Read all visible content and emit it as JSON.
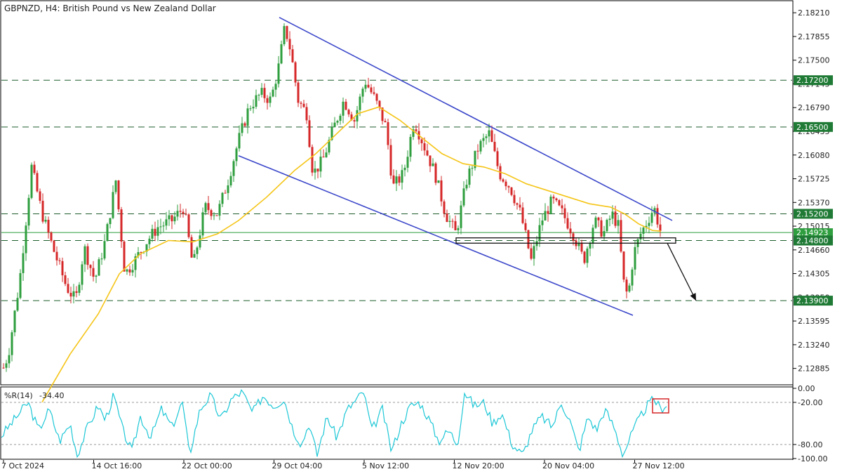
{
  "header": {
    "title": "GBPNZD, H4:  British Pound vs New Zealand Dollar"
  },
  "colors": {
    "bull": "#2e9e3e",
    "bear": "#d62728",
    "ma": "#f5c518",
    "channel": "#3b47c9",
    "indicator": "#1cc7d6",
    "hline_fill": "#1e7a34",
    "grid": "#9a9a9a",
    "arrow": "#111111",
    "box": "#d62728"
  },
  "chart_data": {
    "type": "candlestick",
    "symbol": "GBPNZD",
    "timeframe": "H4",
    "ylim": [
      2.1265,
      2.1838
    ],
    "y_ticks": [
      "2.18210",
      "2.17855",
      "2.17500",
      "2.17145",
      "2.16790",
      "2.16435",
      "2.16080",
      "2.15725",
      "2.15370",
      "2.15015",
      "2.14660",
      "2.14305",
      "2.13950",
      "2.13595",
      "2.13240",
      "2.12885"
    ],
    "x_ticks": [
      "7 Oct 2024",
      "14 Oct 16:00",
      "22 Oct 00:00",
      "29 Oct 04:00",
      "5 Nov 12:00",
      "12 Nov 20:00",
      "20 Nov 04:00",
      "27 Nov 12:00"
    ],
    "horizontal_levels": [
      {
        "value": 2.172,
        "label": "2.17200"
      },
      {
        "value": 2.165,
        "label": "2.16500"
      },
      {
        "value": 2.152,
        "label": "2.15200"
      },
      {
        "value": 2.148,
        "label": "2.14800"
      },
      {
        "value": 2.139,
        "label": "2.13900"
      }
    ],
    "current_price": {
      "value": 2.1492,
      "label": "2.14923"
    },
    "price_path": [
      [
        0,
        2.1275
      ],
      [
        12,
        2.131
      ],
      [
        28,
        2.142
      ],
      [
        45,
        2.159
      ],
      [
        60,
        2.152
      ],
      [
        75,
        2.147
      ],
      [
        95,
        2.141
      ],
      [
        108,
        2.139
      ],
      [
        120,
        2.147
      ],
      [
        135,
        2.142
      ],
      [
        150,
        2.148
      ],
      [
        165,
        2.157
      ],
      [
        178,
        2.143
      ],
      [
        192,
        2.145
      ],
      [
        210,
        2.148
      ],
      [
        225,
        2.15
      ],
      [
        245,
        2.151
      ],
      [
        262,
        2.153
      ],
      [
        275,
        2.144
      ],
      [
        292,
        2.153
      ],
      [
        310,
        2.152
      ],
      [
        325,
        2.157
      ],
      [
        340,
        2.163
      ],
      [
        355,
        2.168
      ],
      [
        372,
        2.17
      ],
      [
        386,
        2.169
      ],
      [
        397,
        2.174
      ],
      [
        406,
        2.18
      ],
      [
        414,
        2.1765
      ],
      [
        425,
        2.169
      ],
      [
        437,
        2.167
      ],
      [
        446,
        2.158
      ],
      [
        460,
        2.16
      ],
      [
        476,
        2.165
      ],
      [
        490,
        2.169
      ],
      [
        505,
        2.166
      ],
      [
        520,
        2.172
      ],
      [
        535,
        2.169
      ],
      [
        550,
        2.165
      ],
      [
        560,
        2.156
      ],
      [
        575,
        2.158
      ],
      [
        590,
        2.166
      ],
      [
        605,
        2.162
      ],
      [
        620,
        2.158
      ],
      [
        635,
        2.152
      ],
      [
        650,
        2.149
      ],
      [
        665,
        2.157
      ],
      [
        682,
        2.162
      ],
      [
        697,
        2.164
      ],
      [
        712,
        2.158
      ],
      [
        727,
        2.156
      ],
      [
        742,
        2.152
      ],
      [
        757,
        2.145
      ],
      [
        772,
        2.151
      ],
      [
        787,
        2.154
      ],
      [
        802,
        2.152
      ],
      [
        817,
        2.149
      ],
      [
        832,
        2.145
      ],
      [
        847,
        2.151
      ],
      [
        860,
        2.149
      ],
      [
        872,
        2.152
      ],
      [
        882,
        2.15
      ],
      [
        888,
        2.142
      ],
      [
        895,
        2.1395
      ],
      [
        903,
        2.146
      ],
      [
        913,
        2.149
      ],
      [
        923,
        2.151
      ],
      [
        932,
        2.153
      ],
      [
        941,
        2.1495
      ]
    ],
    "moving_average": [
      [
        60,
        2.1238
      ],
      [
        100,
        2.131
      ],
      [
        140,
        2.137
      ],
      [
        170,
        2.143
      ],
      [
        200,
        2.146
      ],
      [
        240,
        2.148
      ],
      [
        275,
        2.1478
      ],
      [
        310,
        2.149
      ],
      [
        340,
        2.151
      ],
      [
        380,
        2.1545
      ],
      [
        420,
        2.1585
      ],
      [
        450,
        2.161
      ],
      [
        480,
        2.164
      ],
      [
        510,
        2.167
      ],
      [
        540,
        2.168
      ],
      [
        570,
        2.166
      ],
      [
        600,
        2.1635
      ],
      [
        630,
        2.161
      ],
      [
        660,
        2.1595
      ],
      [
        690,
        2.159
      ],
      [
        720,
        2.158
      ],
      [
        750,
        2.1565
      ],
      [
        780,
        2.1555
      ],
      [
        810,
        2.1545
      ],
      [
        840,
        2.1535
      ],
      [
        870,
        2.153
      ],
      [
        890,
        2.152
      ],
      [
        910,
        2.1505
      ],
      [
        930,
        2.1495
      ],
      [
        942,
        2.1494
      ]
    ],
    "channel_upper": [
      [
        398,
        2.1814
      ],
      [
        958,
        2.151
      ]
    ],
    "channel_lower": [
      [
        340,
        2.1607
      ],
      [
        902,
        2.1368
      ]
    ],
    "support_box": {
      "x1": 650,
      "x2": 963,
      "y_top": 2.1484,
      "y_bottom": 2.1476
    },
    "projection_arrow": {
      "x1": 951,
      "y1": 2.1476,
      "x2": 992,
      "y2": 2.139
    },
    "indicator": {
      "name": "%R(14)",
      "value": "-34.40",
      "ylim": [
        -100,
        0
      ],
      "levels": [
        -20,
        -80
      ],
      "y_ticks": [
        "0.00",
        "-20.00",
        "-80.00",
        "-100.00"
      ],
      "path": [
        [
          0,
          -70
        ],
        [
          20,
          -45
        ],
        [
          40,
          -20
        ],
        [
          55,
          -60
        ],
        [
          70,
          -30
        ],
        [
          85,
          -75
        ],
        [
          100,
          -50
        ],
        [
          110,
          -95
        ],
        [
          125,
          -55
        ],
        [
          140,
          -25
        ],
        [
          150,
          -45
        ],
        [
          162,
          -10
        ],
        [
          175,
          -60
        ],
        [
          188,
          -90
        ],
        [
          200,
          -40
        ],
        [
          215,
          -70
        ],
        [
          230,
          -30
        ],
        [
          245,
          -55
        ],
        [
          260,
          -20
        ],
        [
          270,
          -95
        ],
        [
          285,
          -30
        ],
        [
          300,
          -10
        ],
        [
          315,
          -45
        ],
        [
          330,
          -15
        ],
        [
          345,
          -5
        ],
        [
          360,
          -35
        ],
        [
          375,
          -10
        ],
        [
          390,
          -25
        ],
        [
          405,
          -15
        ],
        [
          418,
          -60
        ],
        [
          430,
          -80
        ],
        [
          440,
          -50
        ],
        [
          452,
          -95
        ],
        [
          466,
          -40
        ],
        [
          480,
          -70
        ],
        [
          495,
          -30
        ],
        [
          505,
          -20
        ],
        [
          518,
          -5
        ],
        [
          530,
          -60
        ],
        [
          545,
          -30
        ],
        [
          558,
          -90
        ],
        [
          572,
          -50
        ],
        [
          585,
          -25
        ],
        [
          598,
          -20
        ],
        [
          612,
          -45
        ],
        [
          625,
          -75
        ],
        [
          640,
          -60
        ],
        [
          652,
          -80
        ],
        [
          662,
          -5
        ],
        [
          676,
          -25
        ],
        [
          690,
          -20
        ],
        [
          702,
          -50
        ],
        [
          715,
          -35
        ],
        [
          730,
          -80
        ],
        [
          745,
          -95
        ],
        [
          758,
          -60
        ],
        [
          772,
          -40
        ],
        [
          787,
          -55
        ],
        [
          800,
          -20
        ],
        [
          812,
          -45
        ],
        [
          825,
          -90
        ],
        [
          838,
          -40
        ],
        [
          850,
          -60
        ],
        [
          862,
          -30
        ],
        [
          875,
          -55
        ],
        [
          888,
          -95
        ],
        [
          898,
          -70
        ],
        [
          910,
          -45
        ],
        [
          922,
          -25
        ],
        [
          932,
          -15
        ],
        [
          942,
          -30
        ],
        [
          952,
          -20
        ]
      ],
      "marker_box": {
        "x1": 930,
        "x2": 953,
        "y_top": -15,
        "y_bottom": -35
      }
    }
  }
}
